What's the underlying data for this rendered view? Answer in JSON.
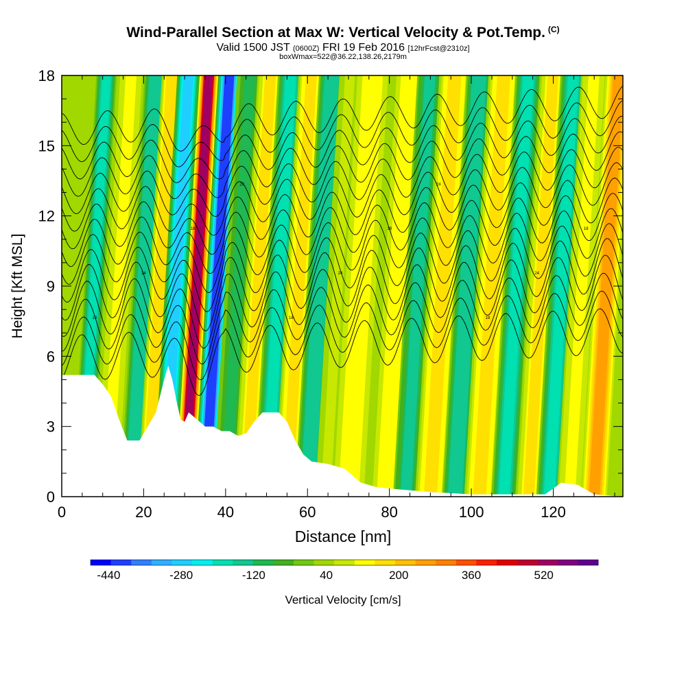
{
  "title": {
    "main": "Wind-Parallel Section at Max W: Vertical Velocity & Pot.Temp.",
    "copyright": "(C)",
    "valid_prefix": "Valid 1500 JST",
    "valid_zulu": "(0600Z)",
    "valid_date": "FRI 19 Feb 2016",
    "forecast": "[12hrFcst@2310z]",
    "box": "boxWmax=522@36.22,138.26,2179m"
  },
  "chart_data": {
    "type": "heatmap",
    "xlabel": "Distance [nm]",
    "ylabel": "Height [Kft MSL]",
    "xlim": [
      0,
      137
    ],
    "ylim": [
      0,
      18
    ],
    "x_ticks": [
      0,
      20,
      40,
      60,
      80,
      100,
      120
    ],
    "y_ticks": [
      0,
      3,
      6,
      9,
      12,
      15,
      18
    ],
    "colorbar": {
      "label": "Vertical Velocity [cm/s]",
      "tick_values": [
        -440,
        -280,
        -120,
        40,
        200,
        360,
        520
      ],
      "range": [
        -480,
        640
      ],
      "colors": [
        "#0000ff",
        "#1f3fff",
        "#2f7fff",
        "#2fafff",
        "#1fcfff",
        "#00efef",
        "#00e0b0",
        "#10c890",
        "#20b850",
        "#40b020",
        "#70c810",
        "#a0d800",
        "#c8e800",
        "#ffff00",
        "#ffe000",
        "#ffc000",
        "#ffa000",
        "#ff8000",
        "#ff5000",
        "#ff2000",
        "#e00000",
        "#c00030",
        "#a00060",
        "#800080",
        "#600090"
      ]
    },
    "vertical_velocity_bands": [
      {
        "x": 8,
        "w": 2,
        "v": -180
      },
      {
        "x": 14,
        "w": 2.5,
        "v": 120
      },
      {
        "x": 20,
        "w": 2.2,
        "v": -160
      },
      {
        "x": 24,
        "w": 2.0,
        "v": 180
      },
      {
        "x": 28,
        "w": 2.2,
        "v": -300
      },
      {
        "x": 33,
        "w": 1.8,
        "v": 520
      },
      {
        "x": 38,
        "w": 2.2,
        "v": -420
      },
      {
        "x": 43,
        "w": 2.5,
        "v": -80
      },
      {
        "x": 48,
        "w": 2.5,
        "v": 150
      },
      {
        "x": 53,
        "w": 2.5,
        "v": -170
      },
      {
        "x": 58,
        "w": 2.5,
        "v": 170
      },
      {
        "x": 63,
        "w": 2.5,
        "v": -160
      },
      {
        "x": 68,
        "w": 2.5,
        "v": 80
      },
      {
        "x": 73,
        "w": 3.5,
        "v": 130
      },
      {
        "x": 82,
        "w": 3,
        "v": 140
      },
      {
        "x": 87,
        "w": 2.5,
        "v": -140
      },
      {
        "x": 93,
        "w": 3,
        "v": 170
      },
      {
        "x": 99,
        "w": 2.5,
        "v": -160
      },
      {
        "x": 105,
        "w": 3,
        "v": 160
      },
      {
        "x": 111,
        "w": 2.5,
        "v": -170
      },
      {
        "x": 117,
        "w": 2.5,
        "v": 150
      },
      {
        "x": 122,
        "w": 2.5,
        "v": -180
      },
      {
        "x": 127,
        "w": 2.5,
        "v": 120
      },
      {
        "x": 133,
        "w": 2.5,
        "v": 240
      }
    ],
    "terrain": [
      [
        0,
        5.2
      ],
      [
        8,
        5.2
      ],
      [
        10,
        4.8
      ],
      [
        12,
        4.3
      ],
      [
        14,
        3.3
      ],
      [
        16,
        2.4
      ],
      [
        19,
        2.4
      ],
      [
        21,
        3.0
      ],
      [
        23,
        3.6
      ],
      [
        25,
        5.0
      ],
      [
        26,
        5.6
      ],
      [
        27,
        5.0
      ],
      [
        28,
        4.1
      ],
      [
        29,
        3.3
      ],
      [
        30,
        3.2
      ],
      [
        31,
        3.6
      ],
      [
        33,
        3.3
      ],
      [
        35,
        3.0
      ],
      [
        37,
        3.0
      ],
      [
        39,
        2.8
      ],
      [
        41,
        2.8
      ],
      [
        43,
        2.6
      ],
      [
        45,
        2.7
      ],
      [
        47,
        3.2
      ],
      [
        49,
        3.6
      ],
      [
        51,
        3.6
      ],
      [
        53,
        3.6
      ],
      [
        55,
        3.2
      ],
      [
        57,
        2.4
      ],
      [
        59,
        1.8
      ],
      [
        61,
        1.5
      ],
      [
        65,
        1.4
      ],
      [
        69,
        1.2
      ],
      [
        73,
        0.6
      ],
      [
        77,
        0.4
      ],
      [
        83,
        0.3
      ],
      [
        90,
        0.2
      ],
      [
        100,
        0.1
      ],
      [
        110,
        0.1
      ],
      [
        118,
        0.1
      ],
      [
        122,
        0.6
      ],
      [
        126,
        0.5
      ],
      [
        130,
        0.1
      ],
      [
        137,
        0.0
      ]
    ],
    "potential_temperature": {
      "isentrope_base_heights": [
        7.5,
        8.2,
        8.9,
        9.6,
        10.3,
        11.0,
        11.7,
        12.4,
        13.1,
        13.8,
        14.5,
        15.2,
        15.9,
        16.6,
        17.3
      ],
      "contour_labels": [
        "18",
        "24",
        "18",
        "24",
        "18",
        "24",
        "18",
        "24",
        "18",
        "24",
        "18"
      ]
    }
  }
}
